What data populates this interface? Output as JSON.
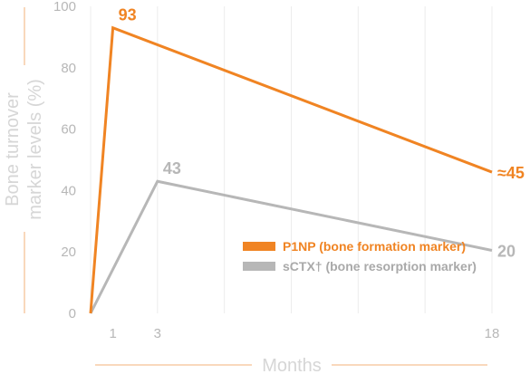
{
  "chart_data": {
    "type": "line",
    "xlabel": "Months",
    "ylabel_lines": [
      "Bone turnover",
      "marker levels (%)"
    ],
    "x_ticks": [
      1,
      3,
      18
    ],
    "y_ticks": [
      0,
      20,
      40,
      60,
      80,
      100
    ],
    "ylim": [
      0,
      100
    ],
    "xlim": [
      0,
      18
    ],
    "grid": "vertical",
    "legend_position": "bottom-right",
    "colors": {
      "accent": "#f08423",
      "gray": "#b7b7b7",
      "axis_line": "#f3b07a",
      "grid": "#ececec"
    },
    "series": [
      {
        "name": "P1NP (bone formation marker)",
        "color": "#f08423",
        "x": [
          0,
          1,
          18
        ],
        "values": [
          0,
          93,
          46
        ],
        "labels": [
          {
            "x": 1,
            "text": "93"
          },
          {
            "x": 18,
            "text": "≈45"
          }
        ]
      },
      {
        "name": "sCTX† (bone resorption marker)",
        "color": "#b7b7b7",
        "x": [
          0,
          3,
          18
        ],
        "values": [
          0,
          43,
          20.5
        ],
        "labels": [
          {
            "x": 3,
            "text": "43"
          },
          {
            "x": 18,
            "text": "20"
          }
        ]
      }
    ]
  }
}
